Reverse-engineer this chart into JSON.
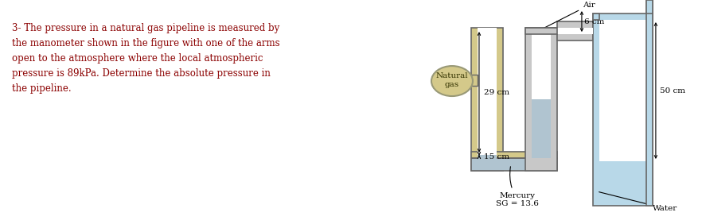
{
  "bg_color": "#ffffff",
  "problem_text_lines": [
    "3- The pressure in a natural gas pipeline is measured by",
    "the manometer shown in the figure with one of the arms",
    "open to the atmosphere where the local atmospheric",
    "pressure is 89kPa. Determine the absolute pressure in",
    "the pipeline."
  ],
  "problem_text_color": "#8B0000",
  "mercury_color": "#b0c4d0",
  "water_color": "#b8d8e8",
  "pipe_tan": "#d4c98a",
  "pipe_tan_dark": "#b8a860",
  "wall_color": "#666666",
  "mid_tube_color": "#c8c8c8",
  "right_tube_color": "#b8d8e8",
  "gas_bubble_fc": "#d4c98a",
  "gas_bubble_ec": "#999977",
  "ann_color": "#000000",
  "labels": {
    "natural_gas": "Natural\ngas",
    "mercury": "Mercury\nSG = 13.6",
    "water": "Water",
    "air": "Air",
    "dim_29": "29 cm",
    "dim_15": "15 cm",
    "dim_6": "6 cm",
    "dim_50": "50 cm"
  }
}
